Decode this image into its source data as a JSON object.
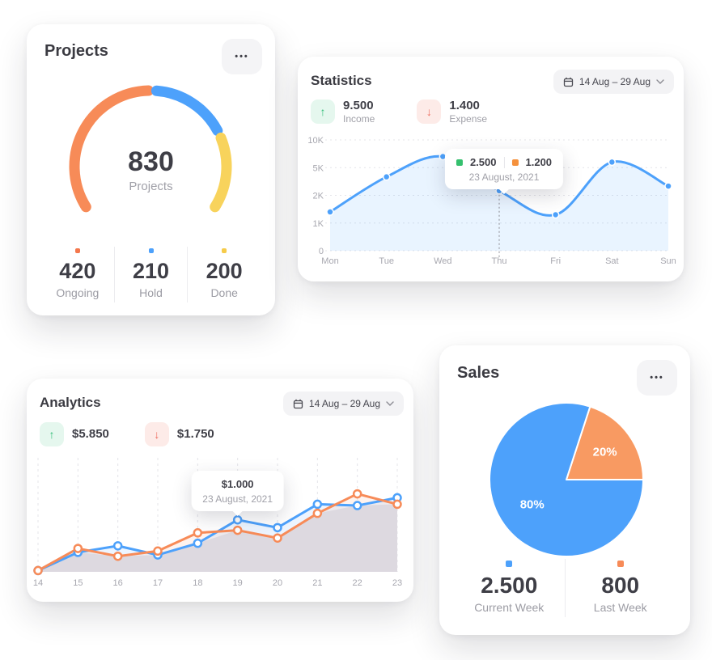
{
  "icons": {
    "ellipsis": "•••",
    "arrow_up": "↑",
    "arrow_down": "↓"
  },
  "projects_card": {
    "title": "Projects",
    "chart_data": {
      "type": "gauge",
      "total_value": "830",
      "total_label": "Projects",
      "segments": [
        {
          "label": "Ongoing",
          "value": 420,
          "color": "#F78B58"
        },
        {
          "label": "Hold",
          "value": 210,
          "color": "#4DA1FB"
        },
        {
          "label": "Done",
          "value": 200,
          "color": "#F8D35C"
        }
      ]
    },
    "legend": [
      {
        "value": "420",
        "label": "Ongoing",
        "color": "#F4774C"
      },
      {
        "value": "210",
        "label": "Hold",
        "color": "#4DA1FB"
      },
      {
        "value": "200",
        "label": "Done",
        "color": "#F6CB4A"
      }
    ]
  },
  "statistics_card": {
    "title": "Statistics",
    "date_range": "14 Aug – 29 Aug",
    "summary": [
      {
        "value": "9.500",
        "label": "Income",
        "arrow": "↑",
        "color": "#35BE7A",
        "bg": "#E5F7EE"
      },
      {
        "value": "1.400",
        "label": "Expense",
        "arrow": "↓",
        "color": "#EE6C5F",
        "bg": "#FDEBE8"
      }
    ],
    "chart_data": {
      "type": "area",
      "x_labels": [
        "Mon",
        "Tue",
        "Wed",
        "Thu",
        "Fri",
        "Sat",
        "Sun"
      ],
      "y_ticks": [
        {
          "value": 0,
          "label": "0"
        },
        {
          "value": 1000,
          "label": "1K"
        },
        {
          "value": 2000,
          "label": "2K"
        },
        {
          "value": 5000,
          "label": "5K"
        },
        {
          "value": 10000,
          "label": "10K"
        }
      ],
      "values": [
        1400,
        4000,
        7000,
        2500,
        1300,
        6000,
        3000
      ],
      "line_color": "#4DA1FB",
      "area_color": "rgba(77,161,251,0.12)",
      "tooltip_index": 3
    },
    "tooltip": {
      "items": [
        {
          "value": "2.500",
          "color": "#35C06E"
        },
        {
          "value": "1.200",
          "color": "#F5913C"
        }
      ],
      "date": "23 August, 2021"
    }
  },
  "analytics_card": {
    "title": "Analytics",
    "date_range": "14 Aug – 29 Aug",
    "summary": [
      {
        "value": "$5.850",
        "arrow": "↑",
        "color": "#35BE7A",
        "bg": "#E5F7EE"
      },
      {
        "value": "$1.750",
        "arrow": "↓",
        "color": "#EE6C5F",
        "bg": "#FDEBE8"
      }
    ],
    "chart_data": {
      "type": "line",
      "x_labels": [
        "14",
        "15",
        "16",
        "17",
        "18",
        "19",
        "20",
        "21",
        "22",
        "23"
      ],
      "ymax": 2100,
      "series": [
        {
          "name": "current",
          "color": "#4DA1FB",
          "fill": "rgba(77,161,251,0.10)",
          "values": [
            25,
            375,
            500,
            325,
            550,
            1000,
            850,
            1300,
            1275,
            1425
          ]
        },
        {
          "name": "previous",
          "color": "#F78B58",
          "fill": "rgba(247,139,88,0.10)",
          "values": [
            25,
            450,
            300,
            400,
            750,
            800,
            650,
            1125,
            1500,
            1300
          ]
        }
      ],
      "under_area_color": "#EBEBEF",
      "tooltip_index": 5
    },
    "tooltip": {
      "value": "$1.000",
      "date": "23 August, 2021"
    }
  },
  "sales_card": {
    "title": "Sales",
    "chart_data": {
      "type": "pie",
      "start_angle": 18,
      "slices": [
        {
          "label": "Last Week",
          "pct": 20,
          "color": "#F89A62",
          "label_r": 0.62
        },
        {
          "label": "Current Week",
          "pct": 80,
          "color": "#4DA1FB",
          "label_r": 0.55
        }
      ]
    },
    "legend": [
      {
        "value": "2.500",
        "label": "Current Week",
        "color": "#4DA1FB"
      },
      {
        "value": "800",
        "label": "Last Week",
        "color": "#F78B58"
      }
    ]
  }
}
